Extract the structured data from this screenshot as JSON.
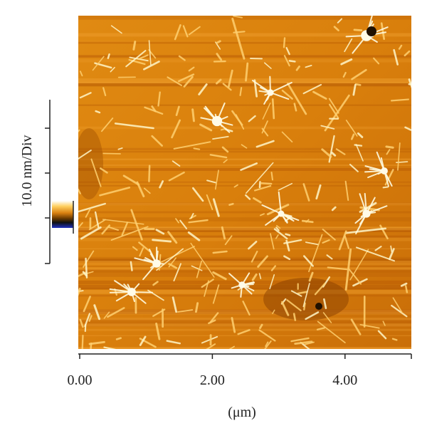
{
  "x_axis": {
    "label": "(μm)",
    "range": [
      0,
      5
    ],
    "ticks": [
      {
        "value": 0,
        "label": "0.00"
      },
      {
        "value": 2,
        "label": "2.00"
      },
      {
        "value": 4,
        "label": "4.00"
      }
    ]
  },
  "z_scale": {
    "label": "10.0 nm/Div"
  }
}
